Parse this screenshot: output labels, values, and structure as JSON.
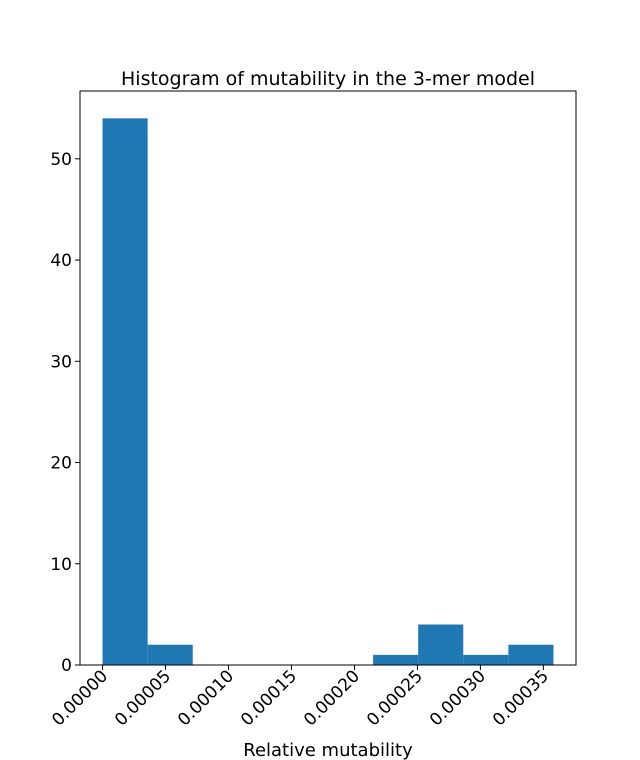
{
  "chart_data": {
    "type": "bar",
    "title": "Histogram of mutability in the 3-mer model",
    "xlabel": "Relative mutability",
    "ylabel": "",
    "bins": [
      {
        "x0": 0.0,
        "x1": 3.58e-05,
        "count": 54
      },
      {
        "x0": 3.58e-05,
        "x1": 7.16e-05,
        "count": 2
      },
      {
        "x0": 7.16e-05,
        "x1": 0.0001074,
        "count": 0
      },
      {
        "x0": 0.0001074,
        "x1": 0.0001432,
        "count": 0
      },
      {
        "x0": 0.0001432,
        "x1": 0.000179,
        "count": 0
      },
      {
        "x0": 0.000179,
        "x1": 0.0002148,
        "count": 0
      },
      {
        "x0": 0.0002148,
        "x1": 0.0002506,
        "count": 1
      },
      {
        "x0": 0.0002506,
        "x1": 0.0002864,
        "count": 4
      },
      {
        "x0": 0.0002864,
        "x1": 0.0003222,
        "count": 1
      },
      {
        "x0": 0.0003222,
        "x1": 0.000358,
        "count": 2
      }
    ],
    "xticks": [
      0.0,
      5e-05,
      0.0001,
      0.00015,
      0.0002,
      0.00025,
      0.0003,
      0.00035
    ],
    "xtick_labels": [
      "0.00000",
      "0.00005",
      "0.00010",
      "0.00015",
      "0.00020",
      "0.00025",
      "0.00030",
      "0.00035"
    ],
    "yticks": [
      0,
      10,
      20,
      30,
      40,
      50
    ],
    "ytick_labels": [
      "0",
      "10",
      "20",
      "30",
      "40",
      "50"
    ],
    "xlim": [
      -1.79e-05,
      0.0003759
    ],
    "ylim": [
      0,
      56.7
    ],
    "grid": false,
    "bar_color": "#1f77b4"
  }
}
